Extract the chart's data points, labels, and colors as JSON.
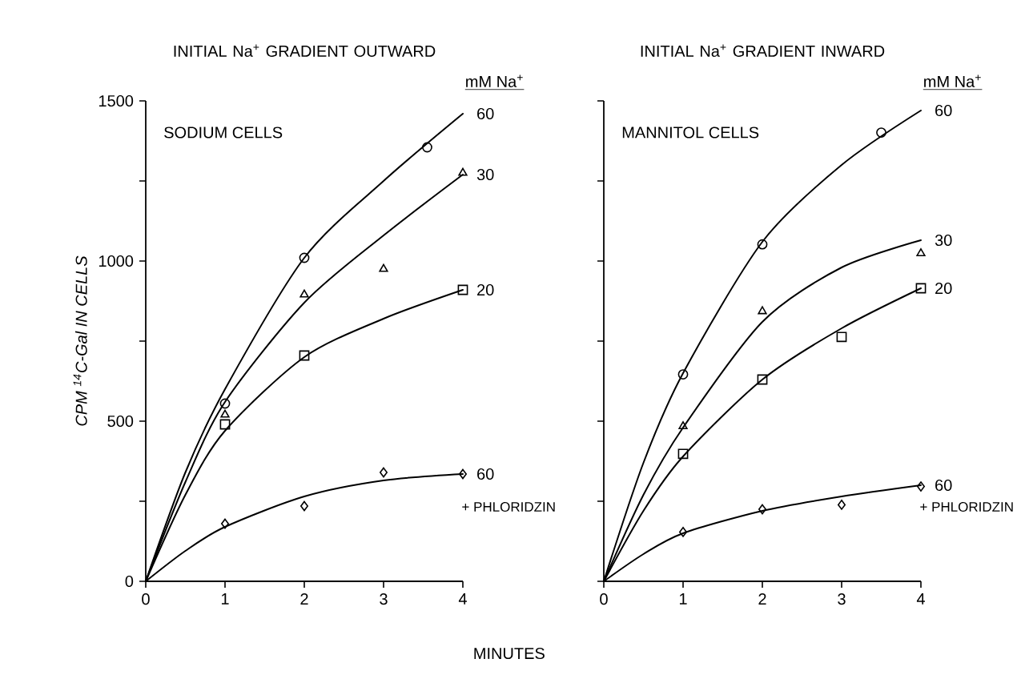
{
  "chart_data": [
    {
      "type": "scatter",
      "title": "INITIAL Na$^{+}$ GRADIENT OUTWARD",
      "xlabel": "MINUTES",
      "ylabel": "CPM $^{14}$C-Gal IN CELLS",
      "legend_title": "mM Na$^{+}$",
      "annotations": [
        "SODIUM CELLS",
        "+ PHLORIDZIN"
      ],
      "xlim": [
        0,
        4
      ],
      "ylim": [
        0,
        1500
      ],
      "xticks": [
        0,
        1,
        2,
        3,
        4
      ],
      "yticks": [
        0,
        {
          "value": 250,
          "label": null
        },
        500,
        {
          "value": 750,
          "label": null
        },
        1000,
        {
          "value": 1250,
          "label": null
        },
        1500
      ],
      "series": [
        {
          "marker": "circle",
          "color": "#000000",
          "x": [
            1,
            2,
            3.55
          ],
          "values": [
            555,
            1010,
            1355
          ]
        },
        {
          "marker": "triangle",
          "color": "#000000",
          "x": [
            1,
            2,
            3,
            4
          ],
          "values": [
            520,
            895,
            975,
            1275
          ]
        },
        {
          "marker": "square",
          "color": "#000000",
          "x": [
            1,
            2,
            4
          ],
          "values": [
            490,
            705,
            910
          ]
        },
        {
          "marker": "diamond",
          "color": "#000000",
          "x": [
            1,
            2,
            3,
            4
          ],
          "values": [
            180,
            235,
            340,
            335
          ]
        },
        {
          "type": "line",
          "name": "60",
          "marker": "none",
          "line_style": "solid",
          "color": "#000000",
          "x": [
            0,
            0.5,
            1,
            2,
            3,
            4
          ],
          "values": [
            0,
            340,
            600,
            1010,
            1250,
            1460
          ]
        },
        {
          "type": "line",
          "name": "30",
          "marker": "none",
          "line_style": "solid",
          "color": "#000000",
          "x": [
            0,
            0.5,
            1,
            2,
            3,
            4
          ],
          "values": [
            0,
            310,
            560,
            870,
            1080,
            1270
          ]
        },
        {
          "type": "line",
          "name": "20",
          "marker": "none",
          "line_style": "solid",
          "color": "#000000",
          "x": [
            0,
            0.5,
            1,
            2,
            3,
            4
          ],
          "values": [
            0,
            270,
            470,
            700,
            820,
            910
          ]
        },
        {
          "type": "line",
          "name": "60",
          "marker": "none",
          "line_style": "solid",
          "color": "#000000",
          "x": [
            0,
            0.5,
            1,
            2,
            3,
            4
          ],
          "values": [
            0,
            95,
            170,
            265,
            315,
            335
          ]
        }
      ]
    },
    {
      "type": "scatter",
      "title": "INITIAL Na$^{+}$ GRADIENT INWARD",
      "legend_title": "mM Na$^{+}$",
      "tick_labels": "x",
      "annotations": [
        "MANNITOL CELLS",
        "+ PHLORIDZIN"
      ],
      "xlim": [
        0,
        4
      ],
      "ylim": [
        0,
        1500
      ],
      "xticks": [
        0,
        1,
        2,
        3,
        4
      ],
      "yticks": [
        0,
        {
          "value": 250,
          "label": null
        },
        500,
        {
          "value": 750,
          "label": null
        },
        1000,
        {
          "value": 1250,
          "label": null
        },
        1500
      ],
      "series": [
        {
          "marker": "circle",
          "color": "#000000",
          "x": [
            1,
            2,
            3.5
          ],
          "values": [
            646,
            1052,
            1401
          ]
        },
        {
          "marker": "triangle",
          "color": "#000000",
          "x": [
            1,
            2,
            4
          ],
          "values": [
            484,
            843,
            1024
          ]
        },
        {
          "marker": "square",
          "color": "#000000",
          "x": [
            1,
            2,
            3,
            4
          ],
          "values": [
            398,
            630,
            763,
            915
          ]
        },
        {
          "marker": "diamond",
          "color": "#000000",
          "x": [
            1,
            2,
            3,
            4
          ],
          "values": [
            154,
            225,
            239,
            296
          ]
        },
        {
          "type": "line",
          "name": "60",
          "marker": "none",
          "line_style": "solid",
          "color": "#000000",
          "x": [
            0,
            0.5,
            1,
            2,
            3,
            4
          ],
          "values": [
            0,
            370,
            650,
            1060,
            1300,
            1470
          ]
        },
        {
          "type": "line",
          "name": "30",
          "marker": "none",
          "line_style": "solid",
          "color": "#000000",
          "x": [
            0,
            0.5,
            1,
            2,
            3,
            4
          ],
          "values": [
            0,
            270,
            480,
            810,
            980,
            1065
          ]
        },
        {
          "type": "line",
          "name": "20",
          "marker": "none",
          "line_style": "solid",
          "color": "#000000",
          "x": [
            0,
            0.5,
            1,
            2,
            3,
            4
          ],
          "values": [
            0,
            220,
            390,
            630,
            790,
            915
          ]
        },
        {
          "type": "line",
          "name": "60",
          "marker": "none",
          "line_style": "solid",
          "color": "#000000",
          "x": [
            0,
            0.5,
            1,
            2,
            3,
            4
          ],
          "values": [
            0,
            85,
            150,
            220,
            265,
            300
          ]
        }
      ]
    }
  ]
}
